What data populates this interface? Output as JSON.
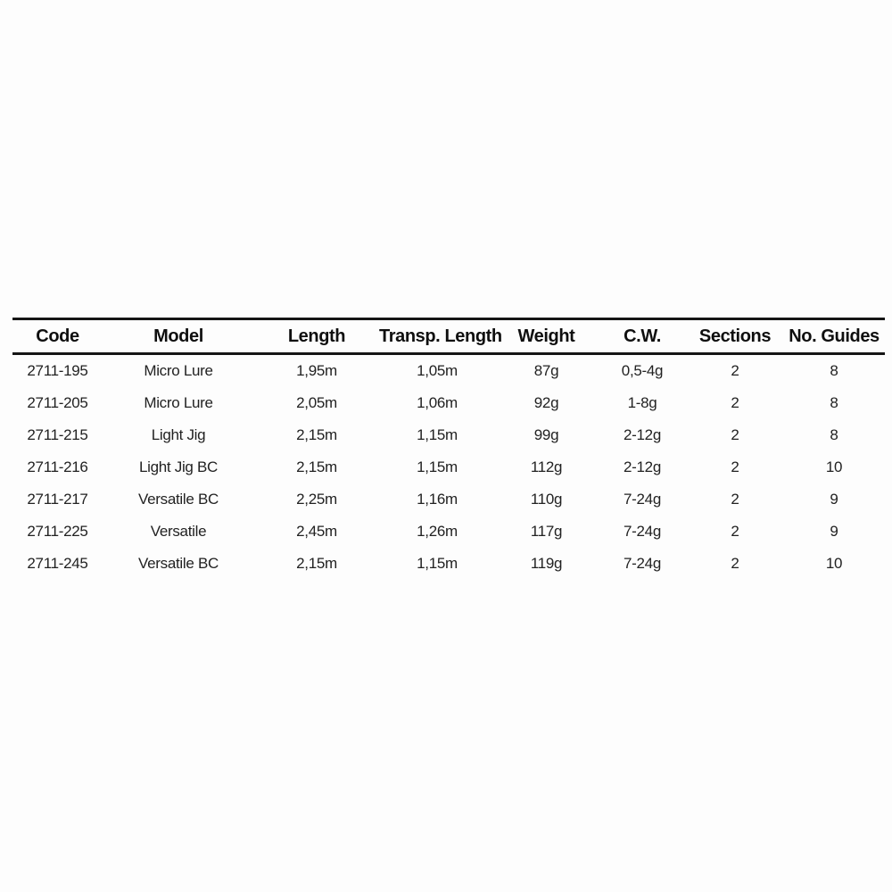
{
  "chart_data": {
    "type": "table",
    "columns": [
      "Code",
      "Model",
      "Length",
      "Transp. Length",
      "Weight",
      "C.W.",
      "Sections",
      "No. Guides"
    ],
    "rows": [
      [
        "2711-195",
        "Micro Lure",
        "1,95m",
        "1,05m",
        "87g",
        "0,5-4g",
        "2",
        "8"
      ],
      [
        "2711-205",
        "Micro Lure",
        "2,05m",
        "1,06m",
        "92g",
        "1-8g",
        "2",
        "8"
      ],
      [
        "2711-215",
        "Light Jig",
        "2,15m",
        "1,15m",
        "99g",
        "2-12g",
        "2",
        "8"
      ],
      [
        "2711-216",
        "Light Jig BC",
        "2,15m",
        "1,15m",
        "112g",
        "2-12g",
        "2",
        "10"
      ],
      [
        "2711-217",
        "Versatile BC",
        "2,25m",
        "1,16m",
        "110g",
        "7-24g",
        "2",
        "9"
      ],
      [
        "2711-225",
        "Versatile",
        "2,45m",
        "1,26m",
        "117g",
        "7-24g",
        "2",
        "9"
      ],
      [
        "2711-245",
        "Versatile BC",
        "2,15m",
        "1,15m",
        "119g",
        "7-24g",
        "2",
        "10"
      ]
    ],
    "layout": {
      "grid": "off",
      "header_rule_top": true,
      "header_rule_bottom": true,
      "bottom_rule": false
    }
  },
  "colors": {
    "background": "#fdfdfd",
    "text": "#222222",
    "header_text": "#0f0f0f",
    "rule": "#151515"
  }
}
